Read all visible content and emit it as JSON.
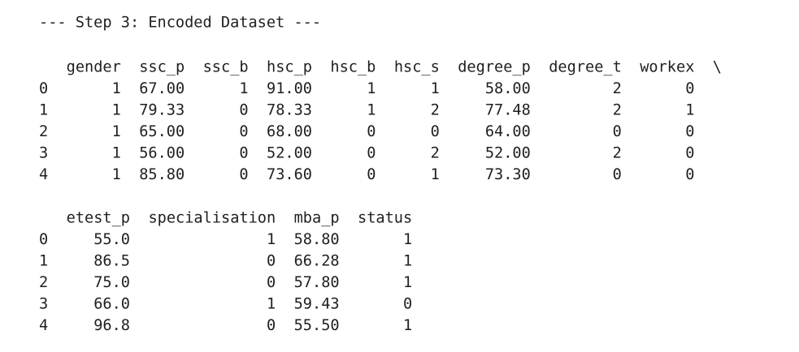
{
  "title": "--- Step 3: Encoded Dataset ---",
  "tables": [
    {
      "columns": [
        "gender",
        "ssc_p",
        "ssc_b",
        "hsc_p",
        "hsc_b",
        "hsc_s",
        "degree_p",
        "degree_t",
        "workex"
      ],
      "continuation": "\\",
      "index": [
        "0",
        "1",
        "2",
        "3",
        "4"
      ],
      "rows": [
        [
          "1",
          "67.00",
          "1",
          "91.00",
          "1",
          "1",
          "58.00",
          "2",
          "0"
        ],
        [
          "1",
          "79.33",
          "0",
          "78.33",
          "1",
          "2",
          "77.48",
          "2",
          "1"
        ],
        [
          "1",
          "65.00",
          "0",
          "68.00",
          "0",
          "0",
          "64.00",
          "0",
          "0"
        ],
        [
          "1",
          "56.00",
          "0",
          "52.00",
          "0",
          "2",
          "52.00",
          "2",
          "0"
        ],
        [
          "1",
          "85.80",
          "0",
          "73.60",
          "0",
          "1",
          "73.30",
          "0",
          "0"
        ]
      ]
    },
    {
      "columns": [
        "etest_p",
        "specialisation",
        "mba_p",
        "status"
      ],
      "index": [
        "0",
        "1",
        "2",
        "3",
        "4"
      ],
      "rows": [
        [
          "55.0",
          "1",
          "58.80",
          "1"
        ],
        [
          "86.5",
          "0",
          "66.28",
          "1"
        ],
        [
          "75.0",
          "0",
          "57.80",
          "1"
        ],
        [
          "66.0",
          "1",
          "59.43",
          "0"
        ],
        [
          "96.8",
          "0",
          "55.50",
          "1"
        ]
      ]
    }
  ]
}
